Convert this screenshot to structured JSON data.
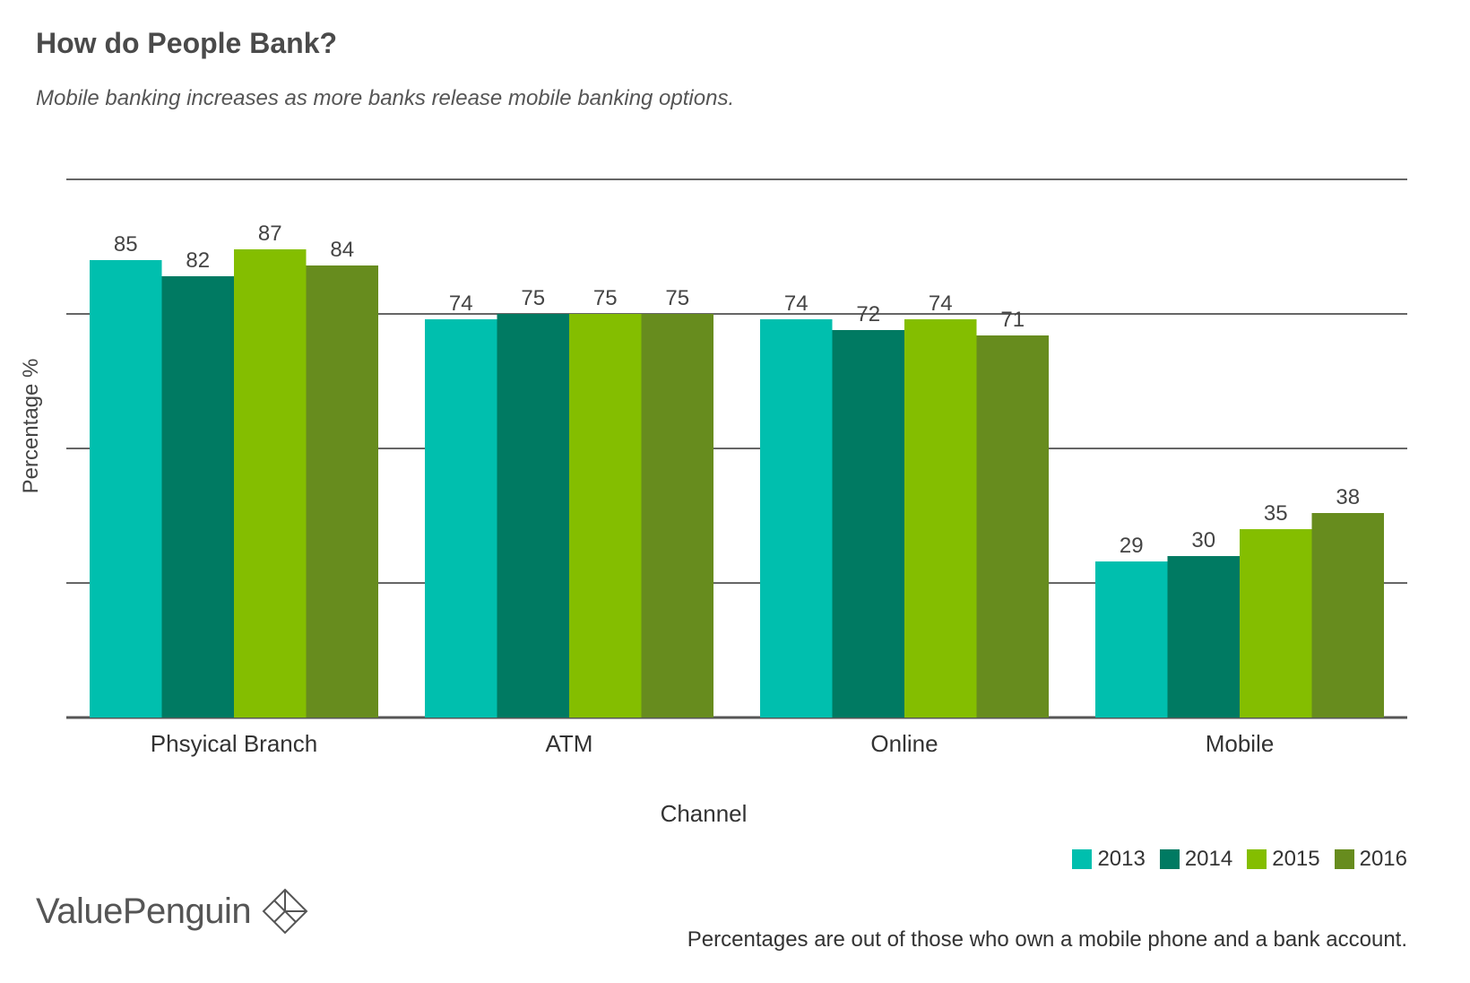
{
  "header": {
    "title": "How do People Bank?",
    "subtitle": "Mobile banking increases as more banks release mobile banking options."
  },
  "chart_data": {
    "type": "bar",
    "categories": [
      "Phsyical Branch",
      "ATM",
      "Online",
      "Mobile"
    ],
    "series": [
      {
        "name": "2013",
        "color": "#00bfae",
        "values": [
          85,
          74,
          74,
          29
        ]
      },
      {
        "name": "2014",
        "color": "#007a62",
        "values": [
          82,
          75,
          72,
          30
        ]
      },
      {
        "name": "2015",
        "color": "#84be00",
        "values": [
          87,
          75,
          74,
          35
        ]
      },
      {
        "name": "2016",
        "color": "#678c1e",
        "values": [
          84,
          75,
          71,
          38
        ]
      }
    ],
    "xlabel": "Channel",
    "ylabel": "Percentage %",
    "ylim": [
      0,
      100
    ],
    "grid": true,
    "data_labels": true,
    "legend_position": "bottom-right"
  },
  "legend": {
    "items": [
      {
        "label": "2013",
        "color": "#00bfae"
      },
      {
        "label": "2014",
        "color": "#007a62"
      },
      {
        "label": "2015",
        "color": "#84be00"
      },
      {
        "label": "2016",
        "color": "#678c1e"
      }
    ]
  },
  "footer": {
    "brand": "ValuePenguin",
    "brand_icon": "diamond-logo-icon",
    "note": "Percentages are out of those who own a mobile phone and a bank account."
  }
}
